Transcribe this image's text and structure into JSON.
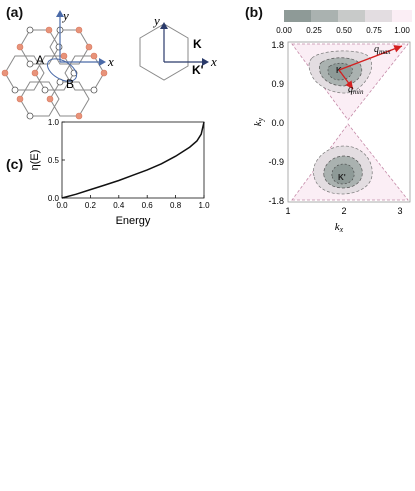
{
  "figure": {
    "panel_a": {
      "label": "(a)",
      "lattice": {
        "x_axis": "x",
        "y_axis": "y",
        "site_a": "A",
        "site_b": "B"
      },
      "brillouin_zone": {
        "x_axis": "x",
        "y_axis": "y",
        "point_k": "K",
        "point_k_prime": "K'"
      }
    },
    "panel_b": {
      "label": "(b)",
      "colorbar_ticks": [
        "0.00",
        "0.25",
        "0.50",
        "0.75",
        "1.00"
      ],
      "xlabel": "k",
      "xlabel_sub": "x",
      "ylabel": "k",
      "ylabel_sub": "y",
      "x_ticks": [
        "1",
        "2",
        "3"
      ],
      "y_ticks": [
        "1.8",
        "0.9",
        "0.0",
        "-0.9",
        "-1.8"
      ],
      "valley_top": "K",
      "valley_bottom": "K'",
      "arrow_max": "q",
      "arrow_max_sub": "max",
      "arrow_min": "q",
      "arrow_min_sub": "min",
      "colors": {
        "arrow": "#d42020",
        "level_0": "#8e9a97",
        "level_1": "#aab2b0",
        "level_2": "#c8cac9",
        "level_3": "#e3dde1",
        "level_4": "#fbeef5"
      }
    },
    "panel_c": {
      "label": "(c)",
      "xlabel": "Energy",
      "ylabel": "η(E)",
      "x_ticks": [
        "0.0",
        "0.2",
        "0.4",
        "0.6",
        "0.8",
        "1.0"
      ],
      "y_ticks": [
        "0.0",
        "0.5",
        "1.0"
      ]
    }
  },
  "chart_data": {
    "type": "line",
    "xlabel": "Energy",
    "ylabel": "η(E)",
    "xlim": [
      0,
      1
    ],
    "ylim": [
      0,
      1
    ],
    "series": [
      {
        "x": [
          0.0,
          0.1,
          0.2,
          0.3,
          0.4,
          0.5,
          0.6,
          0.7,
          0.8,
          0.9,
          0.95,
          0.98,
          1.0
        ],
        "y": [
          0.0,
          0.05,
          0.11,
          0.17,
          0.23,
          0.3,
          0.37,
          0.45,
          0.55,
          0.67,
          0.75,
          0.84,
          1.0
        ]
      }
    ]
  }
}
